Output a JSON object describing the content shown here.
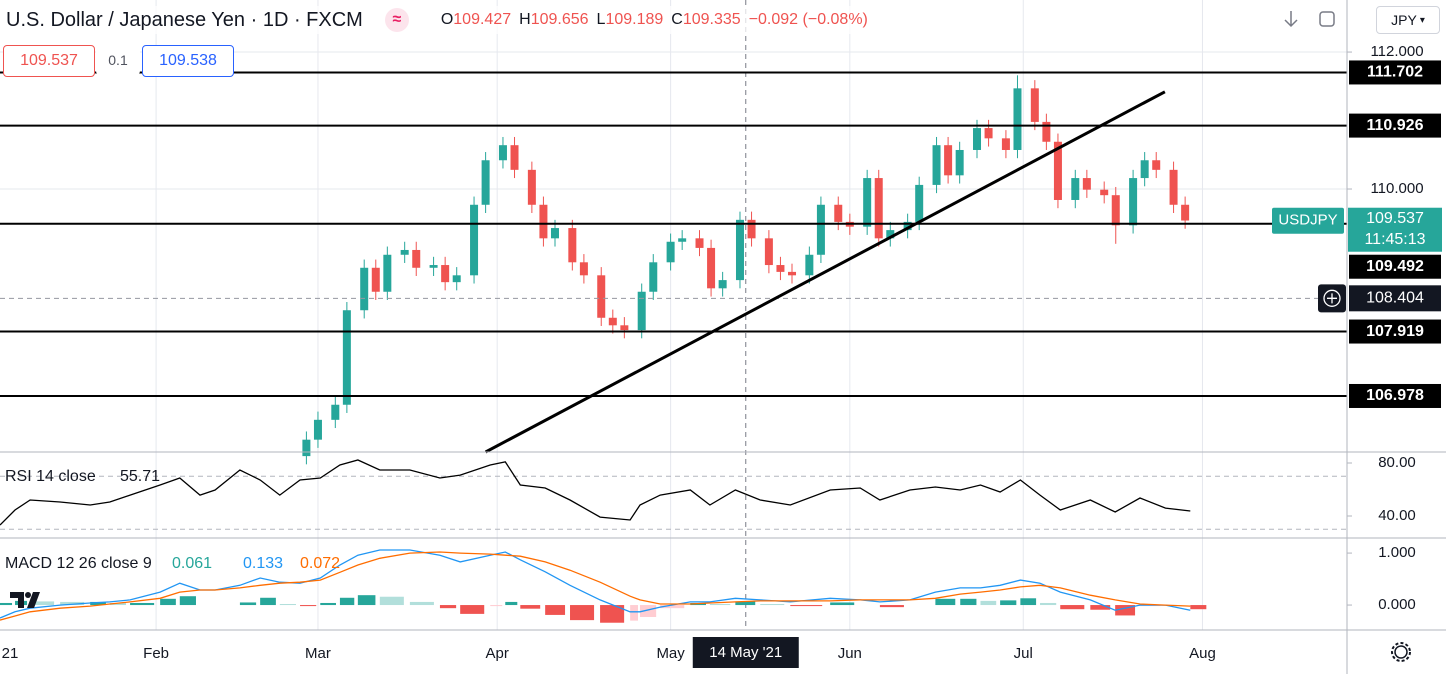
{
  "header": {
    "title": "U.S. Dollar / Japanese Yen · 1D · FXCM",
    "ohlc": [
      {
        "label": "O",
        "value": "109.427"
      },
      {
        "label": "H",
        "value": "109.656"
      },
      {
        "label": "L",
        "value": "109.189"
      },
      {
        "label": "C",
        "value": "109.335"
      }
    ],
    "change": "−0.092 (−0.08%)",
    "bid": "109.537",
    "spread": "0.1",
    "ask": "109.538",
    "currency": "JPY"
  },
  "chart_data": [
    {
      "type": "candlestick",
      "x": [
        58,
        60,
        63,
        65,
        68,
        70,
        72,
        75,
        77,
        80,
        82,
        84,
        87,
        89,
        92,
        94,
        97,
        99,
        101,
        104,
        106,
        109,
        111,
        113,
        116,
        118,
        121,
        123,
        126,
        128,
        130,
        133,
        135,
        138,
        140,
        142,
        145,
        147,
        150,
        152,
        155,
        157,
        159,
        162,
        164,
        167,
        169,
        171,
        174,
        176,
        179,
        181,
        184,
        186,
        188,
        191,
        193,
        196,
        198,
        201,
        203,
        205,
        208,
        210
      ],
      "open": [
        106.1,
        106.34,
        106.63,
        106.85,
        108.23,
        108.85,
        108.5,
        109.04,
        109.11,
        108.85,
        108.89,
        108.64,
        108.74,
        109.77,
        110.42,
        110.64,
        110.28,
        109.77,
        109.28,
        109.43,
        108.93,
        108.74,
        108.12,
        108.01,
        107.94,
        108.5,
        108.93,
        109.23,
        109.28,
        109.14,
        108.55,
        108.67,
        109.55,
        109.28,
        108.89,
        108.79,
        108.74,
        109.04,
        109.77,
        109.52,
        109.45,
        110.16,
        109.28,
        109.4,
        109.52,
        110.06,
        110.64,
        110.2,
        110.57,
        110.89,
        110.74,
        110.57,
        111.47,
        110.98,
        110.69,
        109.84,
        110.16,
        109.99,
        109.91,
        109.47,
        110.16,
        110.42,
        110.28,
        109.77
      ],
      "high": [
        106.46,
        106.75,
        106.97,
        108.35,
        108.97,
        108.97,
        109.16,
        109.23,
        109.23,
        109.01,
        109.01,
        108.86,
        109.89,
        110.54,
        110.76,
        110.76,
        110.4,
        109.89,
        109.55,
        109.55,
        109.05,
        108.86,
        108.24,
        108.13,
        108.62,
        109.05,
        109.35,
        109.4,
        109.4,
        109.26,
        108.79,
        109.67,
        109.67,
        109.4,
        109.01,
        108.91,
        109.16,
        109.89,
        109.89,
        109.64,
        110.28,
        110.28,
        109.52,
        109.64,
        110.18,
        110.76,
        110.76,
        110.69,
        111.01,
        111.01,
        110.86,
        111.66,
        111.59,
        111.1,
        110.81,
        110.28,
        110.28,
        110.11,
        110.03,
        110.28,
        110.54,
        110.54,
        110.4,
        109.89
      ],
      "low": [
        105.98,
        106.22,
        106.51,
        106.73,
        108.11,
        108.38,
        108.38,
        108.92,
        108.73,
        108.73,
        108.52,
        108.52,
        108.62,
        109.65,
        110.3,
        110.16,
        109.65,
        109.16,
        109.16,
        108.81,
        108.62,
        108.0,
        107.89,
        107.82,
        107.82,
        108.38,
        108.81,
        109.11,
        109.02,
        108.43,
        108.43,
        108.55,
        109.16,
        108.77,
        108.67,
        108.62,
        108.62,
        108.92,
        109.4,
        109.33,
        109.33,
        109.16,
        109.16,
        109.28,
        109.4,
        109.94,
        110.08,
        110.08,
        110.45,
        110.62,
        110.45,
        110.45,
        110.86,
        110.57,
        109.72,
        109.72,
        109.87,
        109.79,
        109.2,
        109.35,
        110.04,
        110.16,
        109.65,
        109.42
      ],
      "close": [
        106.34,
        106.63,
        106.85,
        108.23,
        108.85,
        108.5,
        109.04,
        109.11,
        108.85,
        108.89,
        108.64,
        108.74,
        109.77,
        110.42,
        110.64,
        110.28,
        109.77,
        109.28,
        109.43,
        108.93,
        108.74,
        108.12,
        108.01,
        107.94,
        108.5,
        108.93,
        109.23,
        109.28,
        109.14,
        108.55,
        108.67,
        109.55,
        109.28,
        108.89,
        108.79,
        108.74,
        109.04,
        109.77,
        109.52,
        109.45,
        110.16,
        109.28,
        109.4,
        109.52,
        110.06,
        110.64,
        110.2,
        110.57,
        110.89,
        110.74,
        110.57,
        111.47,
        110.98,
        110.69,
        109.84,
        110.16,
        109.99,
        109.91,
        109.47,
        110.16,
        110.42,
        110.28,
        109.77,
        109.54
      ],
      "up_color": "#26a69a",
      "down_color": "#ef5350",
      "xlim": [
        5,
        238
      ],
      "ylim": [
        106.16,
        112.76
      ],
      "xticks": [
        {
          "value": 1,
          "label": "21"
        },
        {
          "value": 32,
          "label": "Feb"
        },
        {
          "value": 60,
          "label": "Mar"
        },
        {
          "value": 91,
          "label": "Apr"
        },
        {
          "value": 121,
          "label": "May"
        },
        {
          "value": 152,
          "label": "Jun"
        },
        {
          "value": 182,
          "label": "Jul"
        },
        {
          "value": 213,
          "label": "Aug"
        }
      ],
      "yticks": [
        {
          "value": 110,
          "label": "110.000"
        },
        {
          "value": 112,
          "label": "112.000"
        }
      ],
      "grid": true,
      "levels": [
        111.702,
        110.926,
        109.492,
        107.919,
        106.978
      ],
      "trendline": {
        "x": [
          89,
          206.5
        ],
        "y": [
          106.16,
          111.42
        ]
      },
      "last_price": {
        "symbol": "USDJPY",
        "value": 109.537,
        "countdown": "11:45:13",
        "color": "#26a69a"
      },
      "crosshair": {
        "x": 134,
        "x_label": "14 May '21",
        "y": 108.404
      }
    },
    {
      "type": "line",
      "title": "RSI 14 close",
      "value_label": "55.71",
      "color": "#000000",
      "x": [
        5,
        7.6,
        10.2,
        15.4,
        20.6,
        24,
        27.5,
        32.7,
        36.1,
        39.6,
        42.2,
        46.5,
        50,
        53.4,
        56.9,
        60.4,
        63.8,
        66.9,
        70.7,
        75.9,
        81.1,
        84.6,
        89.8,
        92.4,
        95,
        99.3,
        103.6,
        108.8,
        114,
        115.7,
        119.2,
        124.4,
        127.8,
        132.2,
        136.5,
        141.7,
        148.6,
        153.8,
        157.2,
        162.4,
        166.8,
        171.1,
        174.6,
        178,
        181.5,
        184.9,
        188.4,
        193.6,
        197.9,
        202.2,
        206.6,
        210.9
      ],
      "values": [
        33.2,
        44.5,
        52.1,
        50.6,
        48.3,
        50.6,
        55.8,
        63.4,
        68.7,
        55.8,
        59.6,
        74.7,
        67.2,
        55.8,
        67.2,
        68.7,
        78.5,
        82.3,
        74.7,
        74.7,
        68.7,
        70.9,
        78.5,
        80.8,
        63.4,
        61.1,
        52.1,
        39.2,
        37.0,
        48.3,
        55.8,
        59.6,
        48.3,
        59.6,
        52.1,
        48.3,
        59.6,
        61.1,
        52.1,
        59.6,
        61.9,
        59.6,
        63.4,
        58.1,
        67.2,
        55.8,
        44.5,
        52.1,
        43.0,
        53.6,
        46.0,
        43.8
      ],
      "ylim": [
        23.4,
        88.3
      ],
      "yticks": [
        {
          "value": 40,
          "label": "40.00"
        },
        {
          "value": 80,
          "label": "80.00"
        }
      ],
      "bands": [
        30,
        70
      ]
    },
    {
      "type": "macd",
      "title": "MACD 12 26 close 9",
      "value_labels": [
        "0.061",
        "0.133",
        "0.072"
      ],
      "x": [
        5,
        7.6,
        10.2,
        15.4,
        20.6,
        24,
        27.5,
        32.7,
        36.1,
        39.6,
        42.2,
        46.5,
        50,
        53.4,
        56.9,
        60.4,
        63.8,
        66.9,
        70.7,
        75.9,
        81.1,
        84.6,
        89.8,
        92.4,
        95,
        99.3,
        103.6,
        108.8,
        114,
        115.7,
        119.2,
        124.4,
        127.8,
        132.2,
        136.5,
        141.7,
        148.6,
        153.8,
        157.2,
        162.4,
        166.8,
        171.1,
        174.6,
        178,
        181.5,
        184.9,
        188.4,
        193.6,
        197.9,
        202.2,
        206.6,
        210.9
      ],
      "histogram": [
        0.04,
        0.08,
        0.07,
        0.06,
        0.06,
        0.04,
        0.04,
        0.12,
        0.17,
        0,
        0,
        0.05,
        0.14,
        0.02,
        -0.02,
        0.04,
        0.14,
        0.19,
        0.16,
        0.06,
        -0.06,
        -0.17,
        -0.02,
        0.06,
        -0.07,
        -0.19,
        -0.29,
        -0.34,
        -0.3,
        -0.23,
        -0.06,
        0.04,
        0.02,
        0.07,
        0.02,
        -0.02,
        0.05,
        0,
        -0.04,
        0,
        0.12,
        0.12,
        0.08,
        0.09,
        0.13,
        0.04,
        -0.08,
        -0.09,
        -0.2,
        -0.02,
        0,
        -0.08
      ],
      "macd": [
        -0.25,
        -0.13,
        -0.06,
        0,
        0.04,
        0.06,
        0.1,
        0.25,
        0.42,
        0.29,
        0.29,
        0.38,
        0.52,
        0.44,
        0.42,
        0.52,
        0.77,
        0.96,
        1.06,
        1.06,
        0.96,
        0.83,
        0.96,
        1.02,
        0.87,
        0.64,
        0.38,
        0.1,
        -0.13,
        -0.13,
        -0.04,
        0.06,
        0.06,
        0.13,
        0.1,
        0.06,
        0.13,
        0.1,
        0.06,
        0.1,
        0.25,
        0.33,
        0.33,
        0.38,
        0.48,
        0.42,
        0.25,
        0.1,
        -0.1,
        0,
        0,
        -0.1
      ],
      "signal": [
        -0.29,
        -0.21,
        -0.13,
        -0.06,
        -0.02,
        0.02,
        0.06,
        0.13,
        0.25,
        0.29,
        0.29,
        0.33,
        0.38,
        0.42,
        0.44,
        0.48,
        0.63,
        0.77,
        0.9,
        1.0,
        1.02,
        1.0,
        0.98,
        0.96,
        0.94,
        0.83,
        0.67,
        0.44,
        0.17,
        0.1,
        0.02,
        0.02,
        0.04,
        0.06,
        0.08,
        0.08,
        0.08,
        0.1,
        0.1,
        0.1,
        0.13,
        0.21,
        0.25,
        0.29,
        0.35,
        0.38,
        0.33,
        0.19,
        0.1,
        0.02,
        0,
        -0.02
      ],
      "colors": {
        "histogram": "#26a69a",
        "macd": "#2196f3",
        "signal": "#ff6d00"
      },
      "ylim": [
        -0.48,
        1.29
      ],
      "yticks": [
        {
          "value": 0,
          "label": "0.000"
        },
        {
          "value": 1,
          "label": "1.000"
        }
      ]
    }
  ]
}
